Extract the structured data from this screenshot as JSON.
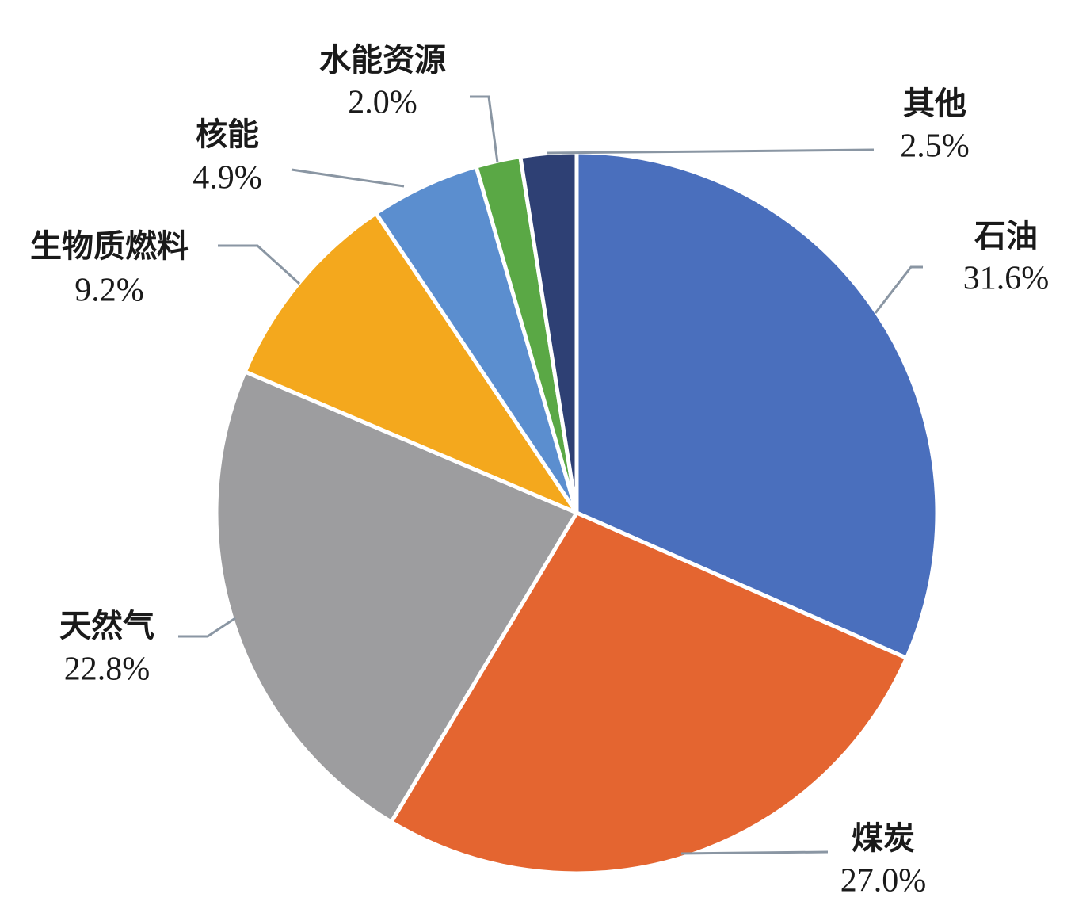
{
  "chart_data": {
    "type": "pie",
    "categories": [
      "石油",
      "煤炭",
      "天然气",
      "生物质燃料",
      "核能",
      "水能资源",
      "其他"
    ],
    "values": [
      31.6,
      27.0,
      22.8,
      9.2,
      4.9,
      2.0,
      2.5
    ],
    "value_labels": [
      "31.6%",
      "27.0%",
      "22.8%",
      "9.2%",
      "4.9%",
      "2.0%",
      "2.5%"
    ],
    "colors": [
      "#4a6fbd",
      "#e46530",
      "#9d9d9f",
      "#f4a81d",
      "#5b8ecf",
      "#5aa845",
      "#2e4074"
    ]
  }
}
